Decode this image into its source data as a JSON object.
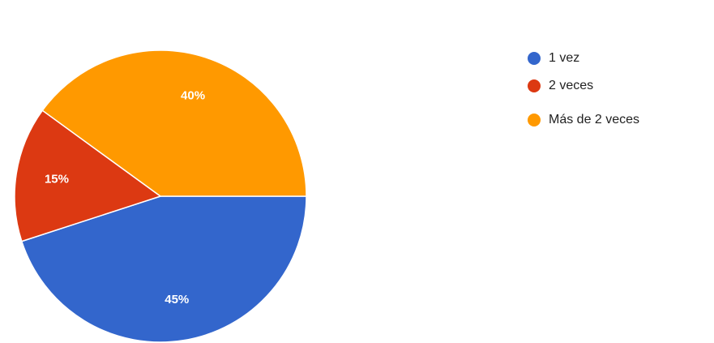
{
  "chart_data": {
    "type": "pie",
    "categories": [
      "1 vez",
      "2 veces",
      "Más de 2 veces"
    ],
    "values": [
      45,
      15,
      40
    ],
    "value_labels": [
      "45%",
      "15%",
      "40%"
    ],
    "colors": [
      "#3366cc",
      "#dc3912",
      "#ff9900"
    ],
    "legend": "right"
  }
}
